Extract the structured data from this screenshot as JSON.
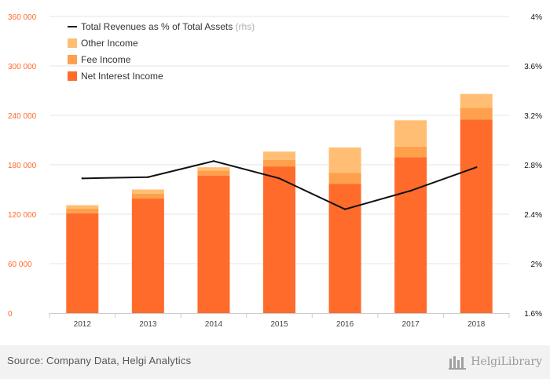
{
  "chart_data": {
    "type": "bar",
    "stacked": true,
    "categories": [
      "2012",
      "2013",
      "2014",
      "2015",
      "2016",
      "2017",
      "2018"
    ],
    "series": [
      {
        "name": "Net Interest Income",
        "type": "bar",
        "axis": "left",
        "color": "#ff6b2b",
        "values": [
          121000,
          139000,
          167000,
          178000,
          157000,
          189000,
          235000
        ]
      },
      {
        "name": "Fee Income",
        "type": "bar",
        "axis": "left",
        "color": "#ffa04d",
        "values": [
          6000,
          6000,
          6000,
          8000,
          13000,
          13000,
          14000
        ]
      },
      {
        "name": "Other Income",
        "type": "bar",
        "axis": "left",
        "color": "#ffbe73",
        "values": [
          4000,
          5000,
          4000,
          10000,
          31000,
          32000,
          17000
        ]
      },
      {
        "name": "Total Revenues as % of Total Assets",
        "type": "line",
        "axis": "right",
        "color": "#111111",
        "values": [
          2.69,
          2.7,
          2.83,
          2.69,
          2.44,
          2.59,
          2.78
        ]
      }
    ],
    "legend_suffix": "(rhs)",
    "legend_position": "top-left",
    "y_left": {
      "min": 0,
      "max": 360000,
      "ticks": [
        0,
        60000,
        120000,
        180000,
        240000,
        300000,
        360000
      ],
      "tick_labels": [
        "0",
        "60 000",
        "120 000",
        "180 000",
        "240 000",
        "300 000",
        "360 000"
      ],
      "color": "#ff6b2b"
    },
    "y_right": {
      "min": 1.6,
      "max": 4.0,
      "ticks": [
        1.6,
        2.0,
        2.4,
        2.8,
        3.2,
        3.6,
        4.0
      ],
      "tick_labels": [
        "1.6%",
        "2%",
        "2.4%",
        "2.8%",
        "3.2%",
        "3.6%",
        "4%"
      ],
      "color": "#111111"
    },
    "grid": true
  },
  "footer": {
    "source": "Source: Company Data, Helgi Analytics",
    "brand": "HelgiLibrary"
  }
}
